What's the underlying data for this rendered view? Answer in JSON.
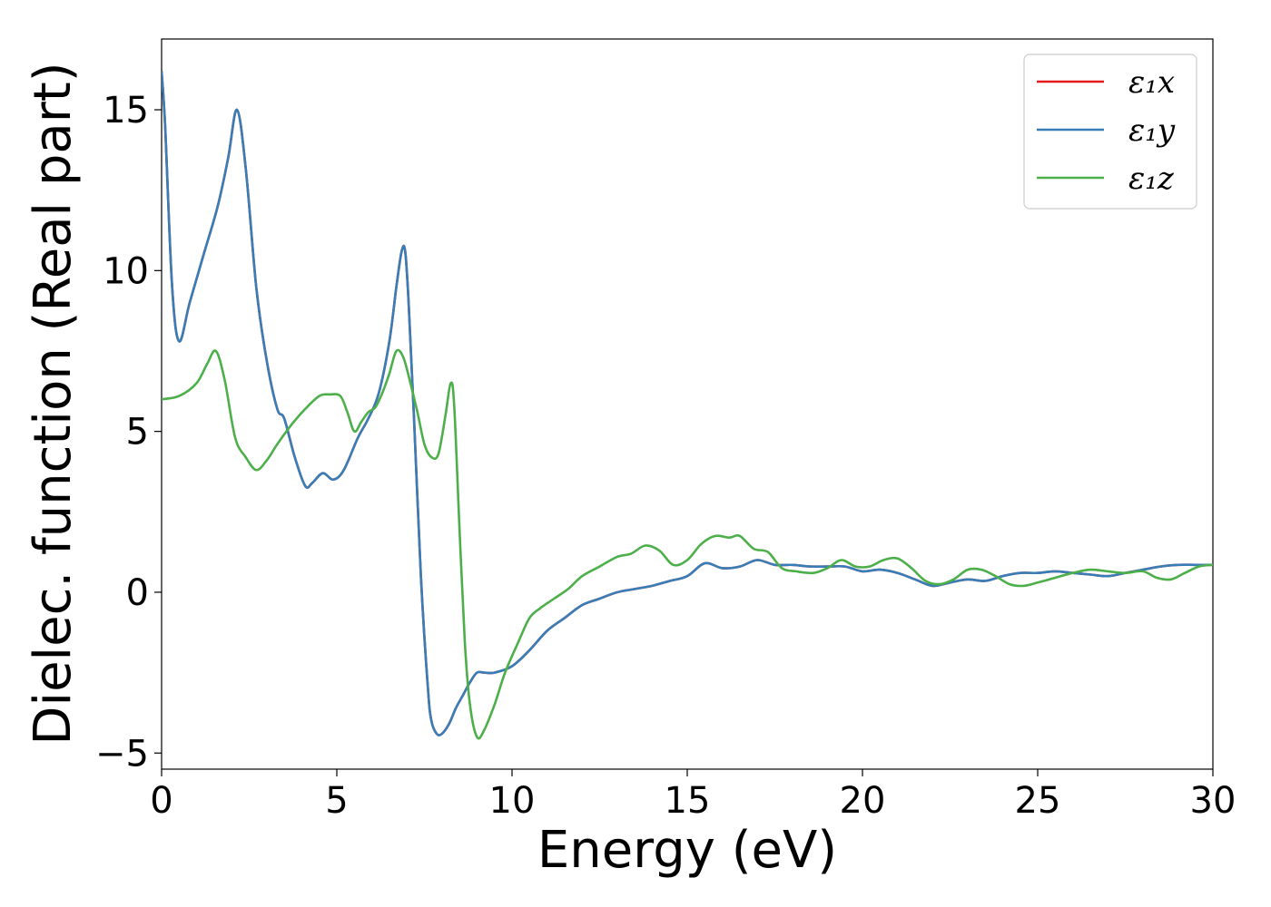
{
  "chart_data": {
    "type": "line",
    "title": "",
    "xlabel": "Energy (eV)",
    "ylabel": "Dielec. function (Real part)",
    "xlim": [
      0,
      30
    ],
    "ylim": [
      -5.5,
      17.2
    ],
    "xticks": [
      0,
      5,
      10,
      15,
      20,
      25,
      30
    ],
    "xtick_labels": [
      "0",
      "5",
      "10",
      "15",
      "20",
      "25",
      "30"
    ],
    "yticks": [
      -5,
      0,
      5,
      10,
      15
    ],
    "ytick_labels": [
      "−5",
      "0",
      "5",
      "10",
      "15"
    ],
    "grid": false,
    "legend_position": "top-right",
    "series": [
      {
        "name": "ε₁x",
        "color": "#e41a1c",
        "x": [
          0,
          0.1,
          0.3,
          0.5,
          0.8,
          1.2,
          1.6,
          1.9,
          2.15,
          2.4,
          2.7,
          3.0,
          3.3,
          3.5,
          3.8,
          4.1,
          4.3,
          4.6,
          4.9,
          5.2,
          5.6,
          5.9,
          6.2,
          6.5,
          6.7,
          6.85,
          6.95,
          7.05,
          7.2,
          7.4,
          7.6,
          7.7,
          7.85,
          8.0,
          8.2,
          8.4,
          8.6,
          8.8,
          9.0,
          9.2,
          9.5,
          10.0,
          10.5,
          11.0,
          11.5,
          12.0,
          12.5,
          13.0,
          13.5,
          14.0,
          14.5,
          15.0,
          15.5,
          16.0,
          16.5,
          17.0,
          17.5,
          18.0,
          18.5,
          19.0,
          19.5,
          20.0,
          20.5,
          21.0,
          21.5,
          22.0,
          22.5,
          23.0,
          23.5,
          24.0,
          24.5,
          25.0,
          25.5,
          26.0,
          26.5,
          27.0,
          27.5,
          28.0,
          28.5,
          29.0,
          29.5,
          30.0
        ],
        "y": [
          16.2,
          14.5,
          9.5,
          7.8,
          9.0,
          10.5,
          12.0,
          13.5,
          15.0,
          13.2,
          9.5,
          7.2,
          5.7,
          5.4,
          4.2,
          3.3,
          3.4,
          3.7,
          3.5,
          3.8,
          4.8,
          5.4,
          6.2,
          7.8,
          9.5,
          10.6,
          10.6,
          9.0,
          5.5,
          0.5,
          -3.0,
          -4.0,
          -4.4,
          -4.4,
          -4.1,
          -3.6,
          -3.2,
          -2.8,
          -2.5,
          -2.5,
          -2.5,
          -2.3,
          -1.8,
          -1.2,
          -0.8,
          -0.4,
          -0.2,
          0.0,
          0.1,
          0.2,
          0.35,
          0.5,
          0.9,
          0.75,
          0.8,
          1.0,
          0.85,
          0.85,
          0.8,
          0.8,
          0.8,
          0.65,
          0.7,
          0.6,
          0.4,
          0.2,
          0.3,
          0.4,
          0.35,
          0.5,
          0.6,
          0.6,
          0.65,
          0.6,
          0.55,
          0.5,
          0.6,
          0.7,
          0.8,
          0.85,
          0.85,
          0.85
        ]
      },
      {
        "name": "ε₁y",
        "color": "#377eb8",
        "x": [
          0,
          0.1,
          0.3,
          0.5,
          0.8,
          1.2,
          1.6,
          1.9,
          2.15,
          2.4,
          2.7,
          3.0,
          3.3,
          3.5,
          3.8,
          4.1,
          4.3,
          4.6,
          4.9,
          5.2,
          5.6,
          5.9,
          6.2,
          6.5,
          6.7,
          6.85,
          6.95,
          7.05,
          7.2,
          7.4,
          7.6,
          7.7,
          7.85,
          8.0,
          8.2,
          8.4,
          8.6,
          8.8,
          9.0,
          9.2,
          9.5,
          10.0,
          10.5,
          11.0,
          11.5,
          12.0,
          12.5,
          13.0,
          13.5,
          14.0,
          14.5,
          15.0,
          15.5,
          16.0,
          16.5,
          17.0,
          17.5,
          18.0,
          18.5,
          19.0,
          19.5,
          20.0,
          20.5,
          21.0,
          21.5,
          22.0,
          22.5,
          23.0,
          23.5,
          24.0,
          24.5,
          25.0,
          25.5,
          26.0,
          26.5,
          27.0,
          27.5,
          28.0,
          28.5,
          29.0,
          29.5,
          30.0
        ],
        "y": [
          16.2,
          14.5,
          9.5,
          7.8,
          9.0,
          10.5,
          12.0,
          13.5,
          15.0,
          13.2,
          9.5,
          7.2,
          5.7,
          5.4,
          4.2,
          3.3,
          3.4,
          3.7,
          3.5,
          3.8,
          4.8,
          5.4,
          6.2,
          7.8,
          9.5,
          10.6,
          10.6,
          9.0,
          5.5,
          0.5,
          -3.0,
          -4.0,
          -4.4,
          -4.4,
          -4.1,
          -3.6,
          -3.2,
          -2.8,
          -2.5,
          -2.5,
          -2.5,
          -2.3,
          -1.8,
          -1.2,
          -0.8,
          -0.4,
          -0.2,
          0.0,
          0.1,
          0.2,
          0.35,
          0.5,
          0.9,
          0.75,
          0.8,
          1.0,
          0.85,
          0.85,
          0.8,
          0.8,
          0.8,
          0.65,
          0.7,
          0.6,
          0.4,
          0.2,
          0.3,
          0.4,
          0.35,
          0.5,
          0.6,
          0.6,
          0.65,
          0.6,
          0.55,
          0.5,
          0.6,
          0.7,
          0.8,
          0.85,
          0.85,
          0.85
        ]
      },
      {
        "name": "ε₁z",
        "color": "#4daf4a",
        "x": [
          0,
          0.5,
          1.0,
          1.3,
          1.55,
          1.8,
          2.1,
          2.4,
          2.7,
          3.0,
          3.3,
          3.7,
          4.1,
          4.5,
          4.8,
          5.1,
          5.3,
          5.5,
          5.7,
          5.9,
          6.1,
          6.3,
          6.5,
          6.7,
          6.9,
          7.1,
          7.3,
          7.5,
          7.7,
          7.9,
          8.1,
          8.25,
          8.35,
          8.5,
          8.65,
          8.8,
          9.0,
          9.2,
          9.5,
          9.8,
          10.2,
          10.5,
          10.8,
          11.2,
          11.6,
          12.0,
          12.5,
          13.0,
          13.4,
          13.8,
          14.2,
          14.6,
          15.0,
          15.4,
          15.8,
          16.2,
          16.5,
          16.9,
          17.3,
          17.7,
          18.1,
          18.6,
          19.0,
          19.4,
          19.8,
          20.2,
          20.6,
          21.0,
          21.4,
          21.8,
          22.2,
          22.6,
          23.0,
          23.4,
          23.8,
          24.2,
          24.6,
          25.0,
          25.5,
          26.0,
          26.5,
          27.0,
          27.5,
          28.0,
          28.4,
          28.8,
          29.2,
          29.6,
          30.0
        ],
        "y": [
          6.0,
          6.1,
          6.5,
          7.1,
          7.5,
          6.6,
          4.8,
          4.2,
          3.8,
          4.1,
          4.6,
          5.2,
          5.7,
          6.1,
          6.15,
          6.1,
          5.6,
          5.0,
          5.3,
          5.6,
          5.75,
          6.2,
          6.8,
          7.5,
          7.3,
          6.5,
          5.6,
          4.6,
          4.2,
          4.3,
          5.5,
          6.5,
          5.8,
          2.0,
          -1.5,
          -3.5,
          -4.5,
          -4.3,
          -3.5,
          -2.5,
          -1.5,
          -0.8,
          -0.5,
          -0.2,
          0.1,
          0.5,
          0.8,
          1.1,
          1.2,
          1.45,
          1.3,
          0.85,
          1.0,
          1.5,
          1.75,
          1.7,
          1.75,
          1.35,
          1.25,
          0.75,
          0.65,
          0.6,
          0.75,
          1.0,
          0.8,
          0.8,
          1.0,
          1.05,
          0.75,
          0.35,
          0.25,
          0.4,
          0.7,
          0.7,
          0.5,
          0.25,
          0.2,
          0.3,
          0.45,
          0.6,
          0.7,
          0.65,
          0.6,
          0.65,
          0.45,
          0.4,
          0.6,
          0.8,
          0.85
        ]
      }
    ]
  }
}
